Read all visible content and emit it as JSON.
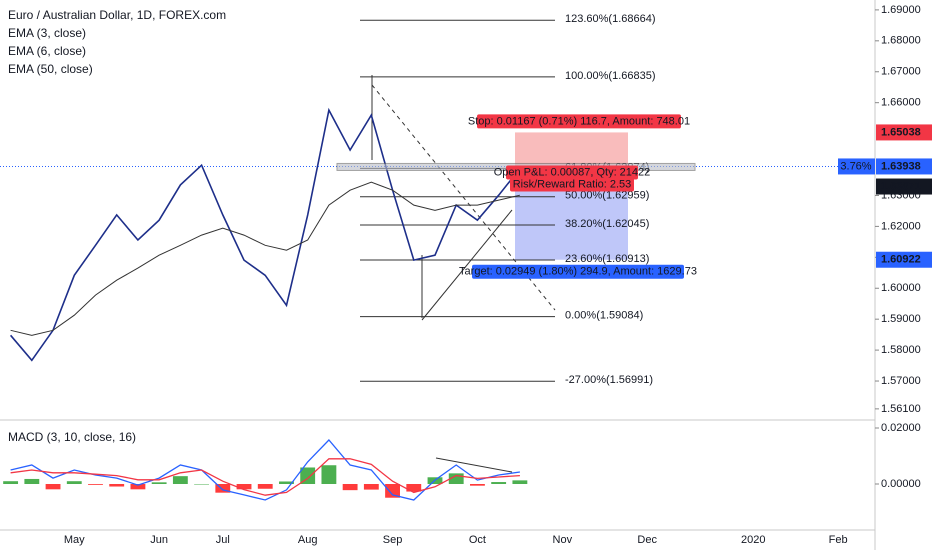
{
  "chart_data": [
    {
      "type": "line",
      "title": "Euro / Australian Dollar, 1D, FOREX.com",
      "indicators": [
        "EMA (3, close)",
        "EMA (6, close)"
      ],
      "categories": [
        null,
        null,
        null,
        "May",
        null,
        null,
        null,
        "Jun",
        null,
        null,
        "Jul",
        null,
        null,
        null,
        "Aug",
        null,
        null,
        null,
        "Sep",
        null,
        null,
        null,
        "Oct",
        null,
        null,
        null,
        "Nov",
        null,
        null,
        null,
        "Dec",
        null,
        null,
        null,
        null,
        "2020",
        null,
        null,
        null,
        "Feb",
        null
      ],
      "series": [
        {
          "color": "#1e2f8a",
          "values": [
            1.5848,
            1.5767,
            1.5864,
            1.6042,
            1.6139,
            1.6237,
            1.6156,
            1.622,
            1.6334,
            1.6398,
            1.6237,
            1.6091,
            1.6042,
            1.5945,
            1.6237,
            1.6576,
            1.6447,
            1.656,
            1.6317,
            1.6091,
            1.6107,
            1.6269,
            1.622,
            1.6301,
            1.6387,
            null,
            null,
            null,
            null,
            null,
            null,
            null,
            null,
            null,
            null,
            null,
            null,
            null,
            null,
            null,
            null
          ]
        },
        {
          "name": "EMA (50, close)",
          "color": "#333333",
          "values": [
            1.5864,
            1.5848,
            1.5864,
            1.5913,
            1.5978,
            1.6026,
            1.6065,
            1.6107,
            1.6139,
            1.6172,
            1.6194,
            1.6172,
            1.6139,
            1.6123,
            1.6156,
            1.6269,
            1.6317,
            1.6343,
            1.6317,
            1.6269,
            1.6252,
            1.6269,
            1.6269,
            1.6285,
            1.6301,
            null,
            null,
            null,
            null,
            null,
            null,
            null,
            null,
            null,
            null,
            null,
            null,
            null,
            null,
            null,
            null
          ]
        }
      ],
      "ylim": [
        1.5574,
        1.6932
      ],
      "yticks": [
        {
          "value": 1.561,
          "label": "1.56100"
        },
        {
          "value": 1.57,
          "label": "1.57000"
        },
        {
          "value": 1.58,
          "label": "1.58000"
        },
        {
          "value": 1.59,
          "label": "1.59000"
        },
        {
          "value": 1.6,
          "label": "1.60000"
        },
        {
          "value": 1.61,
          "label": "1.61000"
        },
        {
          "value": 1.62,
          "label": "1.62000"
        },
        {
          "value": 1.63,
          "label": "1.63000"
        },
        {
          "value": 1.66,
          "label": "1.66000"
        },
        {
          "value": 1.67,
          "label": "1.67000"
        },
        {
          "value": 1.68,
          "label": "1.68000"
        },
        {
          "value": 1.69,
          "label": "1.69000"
        }
      ],
      "fib_levels": [
        {
          "label": "123.60%(1.68664)",
          "value": 1.68664
        },
        {
          "label": "100.00%(1.66835)",
          "value": 1.66835
        },
        {
          "label": "61.80%(1.63874)",
          "value": 1.63874
        },
        {
          "label": "50.00%(1.62959)",
          "value": 1.62959
        },
        {
          "label": "38.20%(1.62045)",
          "value": 1.62045
        },
        {
          "label": "23.60%(1.60913)",
          "value": 1.60913
        },
        {
          "label": "0.00%(1.59084)",
          "value": 1.59084
        },
        {
          "label": "-27.00%(1.56991)",
          "value": 1.56991
        }
      ],
      "position": {
        "entry": 1.63871,
        "stop": 1.65038,
        "target": 1.60922,
        "stop_label": "Stop: 0.01167 (0.71%) 116.7, Amount: 748.01",
        "target_label": "Target: 0.02949 (1.80%) 294.9, Amount: 1629.73",
        "pnl_label": "Open P&L: 0.00087, Qty: 21422",
        "ratio_label": "Risk/Reward Ratio: 2.53"
      },
      "price_labels": [
        {
          "value": 1.65038,
          "color": "#f23645"
        },
        {
          "value": 1.63938,
          "color": "#2962ff",
          "change": "3.76%"
        },
        {
          "value": 1.63871,
          "color": "#131722"
        },
        {
          "value": 1.60922,
          "color": "#2962ff"
        }
      ]
    },
    {
      "type": "macd",
      "title": "MACD (3, 10, close, 16)",
      "ylim": [
        -0.01643,
        0.02286
      ],
      "yticks": [
        {
          "value": 0.02,
          "label": "0.02000"
        },
        {
          "value": 0,
          "label": "0.00000"
        }
      ],
      "series": [
        {
          "color": "#2962ff",
          "values": [
            0.005,
            0.0068,
            0.0021,
            0.005,
            0.0032,
            0.0021,
            -0.0004,
            0.0021,
            0.0068,
            0.005,
            -0.0021,
            -0.0039,
            -0.0057,
            -0.0021,
            0.0079,
            0.0157,
            0.0068,
            0.005,
            -0.0039,
            -0.0057,
            0.0014,
            0.0068,
            0.0014,
            0.0032,
            0.0043,
            null,
            null,
            null,
            null,
            null,
            null,
            null,
            null,
            null,
            null,
            null,
            null,
            null,
            null,
            null,
            null
          ]
        },
        {
          "color": "#f23645",
          "values": [
            0.004,
            0.005,
            0.004,
            0.004,
            0.0035,
            0.003,
            0.0015,
            0.0015,
            0.004,
            0.005,
            0.001,
            -0.002,
            -0.004,
            -0.003,
            0.002,
            0.009,
            0.009,
            0.007,
            0.001,
            -0.003,
            -0.001,
            0.003,
            0.002,
            0.0025,
            0.003,
            null,
            null,
            null,
            null,
            null,
            null,
            null,
            null,
            null,
            null,
            null,
            null,
            null,
            null,
            null,
            null
          ]
        }
      ],
      "histogram": {
        "up_color": "#4caf50",
        "down_color": "#ff3b3b",
        "values": [
          0.001,
          0.0018,
          -0.0019,
          0.001,
          -0.0003,
          -0.0009,
          -0.0019,
          0.0006,
          0.0028,
          0,
          -0.0031,
          -0.0019,
          -0.0017,
          0.0009,
          0.0059,
          0.0067,
          -0.0022,
          -0.002,
          -0.0049,
          -0.0027,
          0.0024,
          0.0038,
          -0.0006,
          0.0007,
          0.0013,
          null,
          null,
          null,
          null,
          null,
          null,
          null,
          null,
          null,
          null,
          null,
          null,
          null,
          null,
          null,
          null
        ]
      }
    }
  ]
}
